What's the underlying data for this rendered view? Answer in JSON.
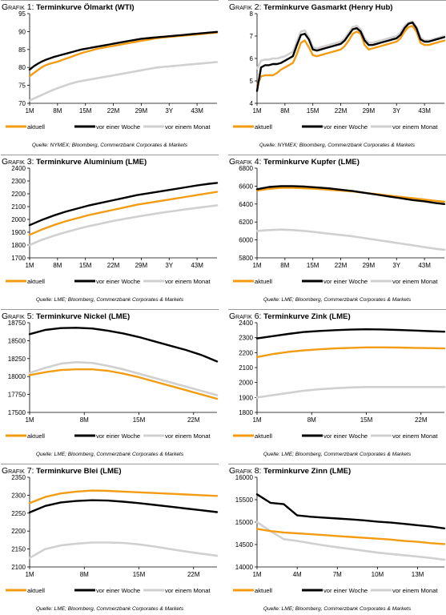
{
  "legend": [
    "aktuell",
    "vor einer Woche",
    "vor einem Monat"
  ],
  "colors": {
    "aktuell": "#f39c12",
    "woche": "#000000",
    "monat": "#d0d0d0"
  },
  "chart_data": [
    {
      "type": "line",
      "label": "Grafik 1:",
      "title": "Terminkurve Ölmarkt (WTI)",
      "source": "Quelle: NYMEX; Bloomberg, Commerzbank Corporates & Markets",
      "x": [
        1,
        2,
        3,
        4,
        5,
        6,
        7,
        8,
        9,
        10,
        11,
        12,
        13,
        14,
        15,
        16,
        17,
        18,
        19,
        20,
        21,
        22,
        23,
        24,
        25,
        26,
        27,
        28,
        29,
        30,
        31,
        32,
        33,
        34,
        35,
        36,
        37,
        38,
        39,
        40,
        41,
        42,
        43,
        44,
        45,
        46,
        47,
        48
      ],
      "xticks": [
        1,
        8,
        15,
        22,
        29,
        36,
        43
      ],
      "xticklabels": [
        "1M",
        "8M",
        "15M",
        "22M",
        "29M",
        "3Y",
        "43M"
      ],
      "xlim": [
        1,
        48
      ],
      "ylim": [
        70,
        95
      ],
      "yticks": [
        70,
        75,
        80,
        85,
        90,
        95
      ],
      "series": [
        {
          "name": "aktuell",
          "values": [
            77.6,
            78.4,
            79.2,
            80.0,
            80.6,
            81.0,
            81.3,
            81.6,
            82.0,
            82.4,
            82.8,
            83.2,
            83.6,
            84.0,
            84.3,
            84.6,
            84.9,
            85.2,
            85.4,
            85.6,
            85.8,
            86.0,
            86.2,
            86.4,
            86.6,
            86.8,
            87.0,
            87.2,
            87.4,
            87.6,
            87.8,
            88.0,
            88.2,
            88.3,
            88.4,
            88.5,
            88.6,
            88.7,
            88.8,
            88.9,
            89.0,
            89.1,
            89.2,
            89.3,
            89.4,
            89.5,
            89.6,
            89.7
          ]
        },
        {
          "name": "vor einer Woche",
          "values": [
            79.4,
            80.3,
            81.0,
            81.6,
            82.1,
            82.5,
            82.9,
            83.2,
            83.5,
            83.8,
            84.1,
            84.4,
            84.7,
            85.0,
            85.2,
            85.4,
            85.6,
            85.8,
            86.0,
            86.2,
            86.4,
            86.6,
            86.8,
            87.0,
            87.2,
            87.4,
            87.6,
            87.8,
            88.0,
            88.1,
            88.2,
            88.3,
            88.4,
            88.5,
            88.6,
            88.7,
            88.8,
            88.9,
            89.0,
            89.1,
            89.2,
            89.3,
            89.4,
            89.5,
            89.6,
            89.7,
            89.8,
            89.9
          ]
        },
        {
          "name": "vor einem Monat",
          "values": [
            70.8,
            71.3,
            71.8,
            72.3,
            72.8,
            73.3,
            73.8,
            74.2,
            74.6,
            75.0,
            75.4,
            75.7,
            76.0,
            76.2,
            76.4,
            76.6,
            76.8,
            77.0,
            77.2,
            77.4,
            77.6,
            77.8,
            78.0,
            78.2,
            78.4,
            78.6,
            78.8,
            79.0,
            79.2,
            79.4,
            79.6,
            79.8,
            80.0,
            80.1,
            80.2,
            80.3,
            80.4,
            80.5,
            80.6,
            80.7,
            80.8,
            80.9,
            81.0,
            81.1,
            81.2,
            81.3,
            81.4,
            81.5
          ]
        }
      ]
    },
    {
      "type": "line",
      "label": "Grafik 2:",
      "title": "Terminkurve Gasmarkt (Henry Hub)",
      "source": "Quelle: NYMEX; Bloomberg, Commerzbank Corporates & Markets",
      "x": [
        1,
        2,
        3,
        4,
        5,
        6,
        7,
        8,
        9,
        10,
        11,
        12,
        13,
        14,
        15,
        16,
        17,
        18,
        19,
        20,
        21,
        22,
        23,
        24,
        25,
        26,
        27,
        28,
        29,
        30,
        31,
        32,
        33,
        34,
        35,
        36,
        37,
        38,
        39,
        40,
        41,
        42,
        43,
        44,
        45,
        46,
        47,
        48
      ],
      "xticks": [
        1,
        8,
        15,
        22,
        29,
        36,
        43
      ],
      "xticklabels": [
        "1M",
        "8M",
        "15M",
        "22M",
        "29M",
        "3Y",
        "43M"
      ],
      "xlim": [
        1,
        48
      ],
      "ylim": [
        4,
        8
      ],
      "yticks": [
        4,
        5,
        6,
        7,
        8
      ],
      "series": [
        {
          "name": "aktuell",
          "values": [
            4.8,
            5.2,
            5.25,
            5.25,
            5.25,
            5.35,
            5.5,
            5.6,
            5.7,
            5.8,
            6.2,
            6.7,
            6.8,
            6.5,
            6.15,
            6.1,
            6.15,
            6.2,
            6.25,
            6.3,
            6.35,
            6.4,
            6.55,
            6.8,
            7.1,
            7.2,
            7.1,
            6.6,
            6.4,
            6.45,
            6.5,
            6.55,
            6.6,
            6.65,
            6.7,
            6.75,
            6.9,
            7.2,
            7.4,
            7.45,
            7.2,
            6.7,
            6.6,
            6.6,
            6.65,
            6.7,
            6.75,
            6.8
          ]
        },
        {
          "name": "vor einer Woche",
          "values": [
            4.55,
            5.6,
            5.7,
            5.7,
            5.75,
            5.75,
            5.8,
            5.9,
            6.0,
            6.1,
            6.6,
            7.05,
            7.1,
            6.85,
            6.4,
            6.35,
            6.4,
            6.45,
            6.5,
            6.55,
            6.6,
            6.65,
            6.8,
            7.05,
            7.3,
            7.35,
            7.2,
            6.8,
            6.6,
            6.6,
            6.65,
            6.7,
            6.75,
            6.8,
            6.85,
            6.9,
            7.05,
            7.35,
            7.55,
            7.6,
            7.35,
            6.85,
            6.75,
            6.75,
            6.8,
            6.85,
            6.9,
            6.95
          ]
        },
        {
          "name": "vor einem Monat",
          "values": [
            5.55,
            5.9,
            5.95,
            5.95,
            6.0,
            6.0,
            6.05,
            6.1,
            6.2,
            6.3,
            6.75,
            7.2,
            7.25,
            6.95,
            6.5,
            6.45,
            6.5,
            6.55,
            6.6,
            6.65,
            6.7,
            6.75,
            6.9,
            7.15,
            7.4,
            7.45,
            7.3,
            6.9,
            6.7,
            6.7,
            6.75,
            6.8,
            6.85,
            6.9,
            6.95,
            7.0,
            7.15,
            7.45,
            7.6,
            7.65,
            7.4,
            6.95,
            6.8,
            6.8,
            6.85,
            6.9,
            6.95,
            7.0
          ]
        }
      ]
    },
    {
      "type": "line",
      "label": "Grafik 3:",
      "title": "Terminkurve Aluminium (LME)",
      "source": "Quelle: LME; Bloomberg, Commerzbank Corporates & Markets",
      "x": [
        1,
        4,
        7,
        10,
        13,
        16,
        19,
        22,
        25,
        28,
        31,
        34,
        37,
        40,
        43,
        46,
        48
      ],
      "xticks": [
        1,
        8,
        15,
        22,
        29,
        36,
        43
      ],
      "xticklabels": [
        "1M",
        "8M",
        "15M",
        "22M",
        "29M",
        "3Y",
        "43M"
      ],
      "xlim": [
        1,
        48
      ],
      "ylim": [
        1700,
        2400
      ],
      "yticks": [
        1700,
        1800,
        1900,
        2000,
        2100,
        2200,
        2300,
        2400
      ],
      "series": [
        {
          "name": "aktuell",
          "values": [
            1880,
            1920,
            1955,
            1985,
            2010,
            2035,
            2055,
            2075,
            2095,
            2115,
            2130,
            2145,
            2160,
            2175,
            2190,
            2205,
            2215
          ]
        },
        {
          "name": "vor einer Woche",
          "values": [
            1955,
            1995,
            2030,
            2060,
            2085,
            2110,
            2130,
            2150,
            2170,
            2190,
            2205,
            2220,
            2235,
            2250,
            2265,
            2278,
            2285
          ]
        },
        {
          "name": "vor einem Monat",
          "values": [
            1800,
            1840,
            1872,
            1900,
            1925,
            1948,
            1968,
            1988,
            2005,
            2022,
            2037,
            2052,
            2065,
            2078,
            2090,
            2102,
            2110
          ]
        }
      ]
    },
    {
      "type": "line",
      "label": "Grafik 4:",
      "title": "Terminkurve Kupfer (LME)",
      "source": "Quelle: LME; Bloomberg, Commerzbank Corporates & Markets",
      "x": [
        1,
        4,
        7,
        10,
        13,
        16,
        19,
        22,
        25,
        28,
        31,
        34,
        37,
        40,
        43,
        46,
        48
      ],
      "xticks": [
        1,
        8,
        15,
        22,
        29,
        36,
        43
      ],
      "xticklabels": [
        "1M",
        "8M",
        "15M",
        "22M",
        "29M",
        "3Y",
        "43M"
      ],
      "xlim": [
        1,
        48
      ],
      "ylim": [
        5800,
        6800
      ],
      "yticks": [
        5800,
        6000,
        6200,
        6400,
        6600,
        6800
      ],
      "series": [
        {
          "name": "aktuell",
          "values": [
            6550,
            6570,
            6580,
            6580,
            6575,
            6570,
            6560,
            6550,
            6540,
            6525,
            6510,
            6495,
            6480,
            6465,
            6450,
            6435,
            6425
          ]
        },
        {
          "name": "vor einer Woche",
          "values": [
            6565,
            6590,
            6600,
            6600,
            6595,
            6585,
            6575,
            6560,
            6545,
            6525,
            6505,
            6485,
            6465,
            6445,
            6430,
            6410,
            6400
          ]
        },
        {
          "name": "vor einem Monat",
          "values": [
            6100,
            6110,
            6115,
            6110,
            6100,
            6085,
            6070,
            6055,
            6040,
            6020,
            6000,
            5980,
            5960,
            5940,
            5920,
            5900,
            5890
          ]
        }
      ]
    },
    {
      "type": "line",
      "label": "Grafik 5:",
      "title": "Terminkurve Nickel (LME)",
      "source": "Quelle: LME; Bloomberg, Commerzbank Corporates & Markets",
      "x": [
        1,
        3,
        5,
        7,
        9,
        11,
        13,
        15,
        17,
        19,
        21,
        23,
        25
      ],
      "xticks": [
        1,
        8,
        15,
        22
      ],
      "xticklabels": [
        "1M",
        "8M",
        "15M",
        "22M"
      ],
      "xlim": [
        1,
        25
      ],
      "ylim": [
        17500,
        18750
      ],
      "yticks": [
        17500,
        17750,
        18000,
        18250,
        18500,
        18750
      ],
      "series": [
        {
          "name": "aktuell",
          "values": [
            18020,
            18060,
            18090,
            18100,
            18100,
            18080,
            18040,
            17990,
            17930,
            17870,
            17810,
            17750,
            17690
          ]
        },
        {
          "name": "vor einer Woche",
          "values": [
            18590,
            18650,
            18675,
            18680,
            18670,
            18640,
            18600,
            18550,
            18490,
            18430,
            18370,
            18300,
            18210
          ]
        },
        {
          "name": "vor einem Monat",
          "values": [
            18050,
            18120,
            18180,
            18200,
            18190,
            18150,
            18100,
            18040,
            17980,
            17920,
            17860,
            17800,
            17740
          ]
        }
      ]
    },
    {
      "type": "line",
      "label": "Grafik 6:",
      "title": "Terminkurve Zink (LME)",
      "source": "Quelle: LME; Bloomberg, Commerzbank Corporates & Markets",
      "x": [
        1,
        3,
        5,
        7,
        9,
        11,
        13,
        15,
        17,
        19,
        21,
        23,
        25
      ],
      "xticks": [
        1,
        8,
        15,
        22
      ],
      "xticklabels": [
        "1M",
        "8M",
        "15M",
        "22M"
      ],
      "xlim": [
        1,
        25
      ],
      "ylim": [
        1800,
        2400
      ],
      "yticks": [
        1800,
        1900,
        2000,
        2100,
        2200,
        2300,
        2400
      ],
      "series": [
        {
          "name": "aktuell",
          "values": [
            2170,
            2190,
            2205,
            2215,
            2222,
            2228,
            2232,
            2235,
            2235,
            2234,
            2232,
            2230,
            2228
          ]
        },
        {
          "name": "vor einer Woche",
          "values": [
            2295,
            2310,
            2325,
            2338,
            2345,
            2350,
            2354,
            2356,
            2355,
            2352,
            2348,
            2344,
            2340
          ]
        },
        {
          "name": "vor einem Monat",
          "values": [
            1900,
            1915,
            1930,
            1945,
            1955,
            1962,
            1967,
            1970,
            1970,
            1970,
            1970,
            1970,
            1970
          ]
        }
      ]
    },
    {
      "type": "line",
      "label": "Grafik 7:",
      "title": "Terminkurve Blei (LME)",
      "source": "Quelle: LME; Bloomberg, Commerzbank Corporates & Markets",
      "x": [
        1,
        3,
        5,
        7,
        9,
        11,
        13,
        15,
        17,
        19,
        21,
        23,
        25
      ],
      "xticks": [
        1,
        8,
        15,
        22
      ],
      "xticklabels": [
        "1M",
        "8M",
        "15M",
        "22M"
      ],
      "xlim": [
        1,
        25
      ],
      "ylim": [
        2100,
        2350
      ],
      "yticks": [
        2100,
        2150,
        2200,
        2250,
        2300,
        2350
      ],
      "series": [
        {
          "name": "aktuell",
          "values": [
            2278,
            2295,
            2305,
            2310,
            2313,
            2312,
            2310,
            2308,
            2306,
            2304,
            2302,
            2300,
            2298
          ]
        },
        {
          "name": "vor einer Woche",
          "values": [
            2252,
            2270,
            2280,
            2284,
            2286,
            2285,
            2282,
            2278,
            2273,
            2268,
            2263,
            2258,
            2253
          ]
        },
        {
          "name": "vor einem Monat",
          "values": [
            2125,
            2150,
            2160,
            2165,
            2168,
            2168,
            2167,
            2163,
            2157,
            2150,
            2143,
            2137,
            2131
          ]
        }
      ]
    },
    {
      "type": "line",
      "label": "Grafik 8:",
      "title": "Terminkurve Zinn (LME)",
      "source": "Quelle: LME; Bloomberg, Commerzbank Corporates & Markets",
      "x": [
        1,
        2,
        3,
        4,
        5,
        6,
        7,
        8,
        9,
        10,
        11,
        12,
        13,
        14,
        15
      ],
      "xticks": [
        1,
        4,
        7,
        10,
        13
      ],
      "xticklabels": [
        "1M",
        "4M",
        "7M",
        "10M",
        "13M"
      ],
      "xlim": [
        1,
        15
      ],
      "ylim": [
        14000,
        16000
      ],
      "yticks": [
        14000,
        14500,
        15000,
        15500,
        16000
      ],
      "series": [
        {
          "name": "aktuell",
          "values": [
            14850,
            14800,
            14770,
            14750,
            14730,
            14710,
            14690,
            14670,
            14650,
            14630,
            14610,
            14580,
            14560,
            14530,
            14510
          ]
        },
        {
          "name": "vor einer Woche",
          "values": [
            15620,
            15430,
            15400,
            15150,
            15120,
            15100,
            15080,
            15060,
            15040,
            15010,
            14990,
            14960,
            14930,
            14900,
            14860
          ]
        },
        {
          "name": "vor einem Monat",
          "values": [
            15000,
            14800,
            14620,
            14580,
            14530,
            14480,
            14440,
            14400,
            14360,
            14320,
            14290,
            14260,
            14230,
            14200,
            14160
          ]
        }
      ]
    }
  ]
}
